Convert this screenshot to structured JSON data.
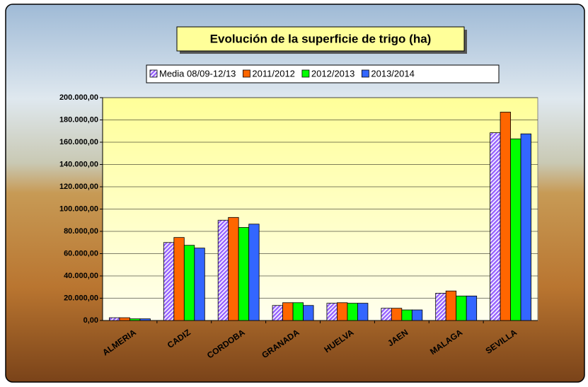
{
  "chart_data": {
    "type": "bar",
    "title": "Evolución de la superficie de trigo (ha)",
    "categories": [
      "ALMERIA",
      "CADIZ",
      "CORDOBA",
      "GRANADA",
      "HUELVA",
      "JAEN",
      "MALAGA",
      "SEVILLA"
    ],
    "series": [
      {
        "name": "Media 08/09-12/13",
        "color": "#9966ff",
        "pattern": "hatch",
        "values": [
          2500,
          70000,
          90000,
          13500,
          15500,
          11000,
          24500,
          168500
        ]
      },
      {
        "name": "2011/2012",
        "color": "#ff6600",
        "values": [
          2500,
          74500,
          92500,
          16000,
          16000,
          11000,
          26500,
          187000
        ]
      },
      {
        "name": "2012/2013",
        "color": "#00ff00",
        "values": [
          1500,
          67500,
          83500,
          16000,
          15500,
          9500,
          22000,
          163000
        ]
      },
      {
        "name": "2013/2014",
        "color": "#3366ff",
        "values": [
          1500,
          65000,
          86500,
          13500,
          15500,
          9500,
          22000,
          167500
        ]
      }
    ],
    "ylim": [
      0,
      200000
    ],
    "yticks": [
      {
        "value": 0,
        "label": "0,00"
      },
      {
        "value": 20000,
        "label": "20.000,00"
      },
      {
        "value": 40000,
        "label": "40.000,00"
      },
      {
        "value": 60000,
        "label": "60.000,00"
      },
      {
        "value": 80000,
        "label": "80.000,00"
      },
      {
        "value": 100000,
        "label": "100.000,00"
      },
      {
        "value": 120000,
        "label": "120.000,00"
      },
      {
        "value": 140000,
        "label": "140.000,00"
      },
      {
        "value": 160000,
        "label": "160.000,00"
      },
      {
        "value": 180000,
        "label": "180.000,00"
      },
      {
        "value": 200000,
        "label": "200.000,00"
      }
    ],
    "grid": true
  }
}
